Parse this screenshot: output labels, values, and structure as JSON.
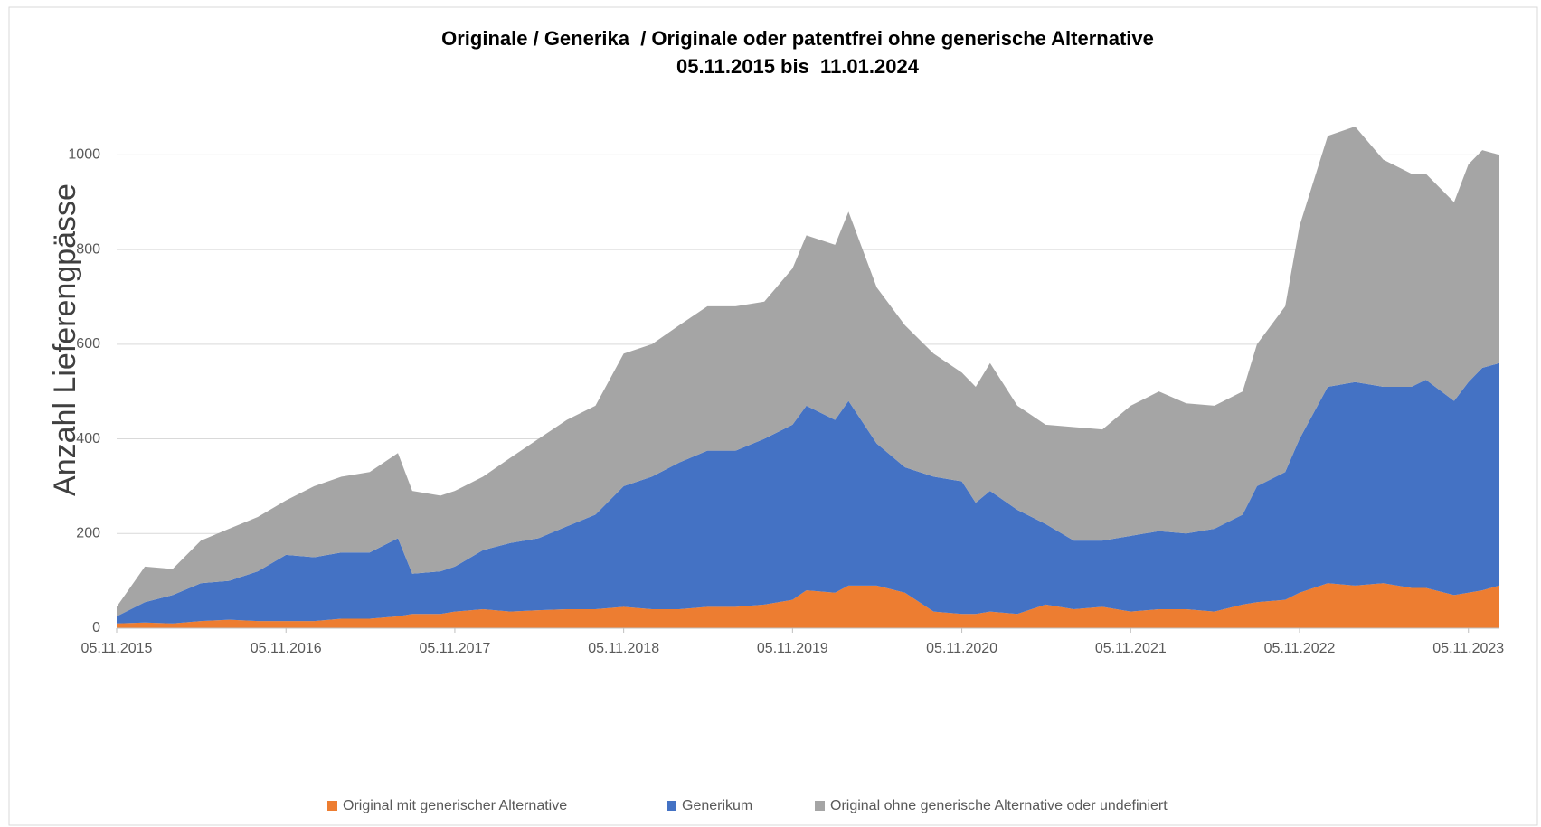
{
  "chart_data": {
    "type": "stacked_area",
    "title": "Originale / Generika  / Originale oder patentfrei ohne generische Alternative",
    "subtitle": "05.11.2015 bis  11.01.2024",
    "y_label": "Anzahl Lieferengpässe",
    "x": [
      "05.11.2015",
      "05.01.2016",
      "05.03.2016",
      "05.05.2016",
      "05.07.2016",
      "05.09.2016",
      "05.11.2016",
      "05.01.2017",
      "05.03.2017",
      "05.05.2017",
      "05.07.2017",
      "05.08.2017",
      "05.10.2017",
      "05.11.2017",
      "05.01.2018",
      "05.03.2018",
      "05.05.2018",
      "05.07.2018",
      "05.09.2018",
      "05.11.2018",
      "05.01.2019",
      "05.03.2019",
      "05.05.2019",
      "05.07.2019",
      "05.09.2019",
      "05.11.2019",
      "05.12.2019",
      "05.02.2020",
      "05.03.2020",
      "05.05.2020",
      "05.07.2020",
      "05.09.2020",
      "05.11.2020",
      "05.12.2020",
      "05.01.2021",
      "05.03.2021",
      "05.05.2021",
      "05.07.2021",
      "05.09.2021",
      "05.11.2021",
      "05.01.2022",
      "05.03.2022",
      "05.05.2022",
      "05.07.2022",
      "05.08.2022",
      "05.10.2022",
      "05.11.2022",
      "05.01.2023",
      "05.03.2023",
      "05.05.2023",
      "05.07.2023",
      "05.08.2023",
      "05.10.2023",
      "05.11.2023",
      "05.12.2023",
      "11.01.2024"
    ],
    "series": [
      {
        "name": "Original mit generischer Alternative",
        "color": "#ED7D31",
        "values": [
          10,
          12,
          10,
          15,
          18,
          15,
          15,
          15,
          20,
          20,
          25,
          30,
          30,
          35,
          40,
          35,
          38,
          40,
          40,
          45,
          40,
          40,
          45,
          45,
          50,
          60,
          80,
          75,
          90,
          90,
          75,
          35,
          30,
          30,
          35,
          30,
          50,
          40,
          45,
          35,
          40,
          40,
          35,
          50,
          55,
          60,
          75,
          95,
          90,
          95,
          85,
          85,
          70,
          75,
          80,
          90
        ]
      },
      {
        "name": "Generikum",
        "color": "#4472C4",
        "values": [
          15,
          43,
          60,
          80,
          82,
          105,
          140,
          135,
          140,
          140,
          165,
          85,
          90,
          95,
          125,
          145,
          152,
          175,
          200,
          255,
          280,
          310,
          330,
          330,
          350,
          370,
          390,
          365,
          390,
          300,
          265,
          285,
          280,
          235,
          255,
          220,
          170,
          145,
          140,
          160,
          165,
          160,
          175,
          190,
          245,
          270,
          325,
          415,
          430,
          415,
          425,
          440,
          410,
          445,
          470,
          470
        ]
      },
      {
        "name": "Original ohne generische Alternative oder undefiniert",
        "color": "#A5A5A5",
        "values": [
          20,
          75,
          55,
          90,
          110,
          115,
          115,
          150,
          160,
          170,
          180,
          175,
          160,
          160,
          155,
          180,
          210,
          225,
          230,
          280,
          280,
          290,
          305,
          305,
          290,
          330,
          360,
          370,
          400,
          330,
          300,
          260,
          230,
          245,
          270,
          220,
          210,
          240,
          235,
          275,
          295,
          275,
          260,
          260,
          300,
          350,
          450,
          530,
          540,
          480,
          450,
          435,
          420,
          460,
          460,
          440
        ]
      }
    ],
    "xlim": [
      "05.11.2015",
      "11.01.2024"
    ],
    "xticks": [
      "05.11.2015",
      "05.11.2016",
      "05.11.2017",
      "05.11.2018",
      "05.11.2019",
      "05.11.2020",
      "05.11.2021",
      "05.11.2022",
      "05.11.2023"
    ],
    "ylim": [
      0,
      1100
    ],
    "yticks": [
      0,
      200,
      400,
      600,
      800,
      1000
    ],
    "grid": true,
    "legend": "bottom"
  }
}
